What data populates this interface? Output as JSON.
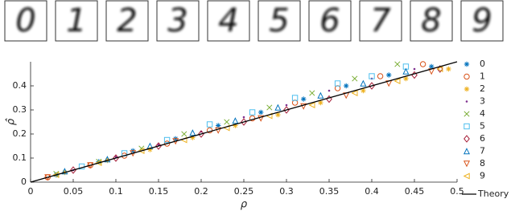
{
  "chart_data": {
    "type": "scatter",
    "xlabel": "ρ",
    "ylabel": "ρ̂",
    "xlim": [
      0,
      0.5
    ],
    "ylim": [
      0,
      0.5
    ],
    "xticks": [
      0,
      0.05,
      0.1,
      0.15,
      0.2,
      0.25,
      0.3,
      0.35,
      0.4,
      0.45,
      0.5
    ],
    "yticks": [
      0,
      0.1,
      0.2,
      0.3,
      0.4
    ],
    "legend": "right",
    "series": [
      {
        "name": "0",
        "color": "#0072BD",
        "marker": "star",
        "x": [
          0.03,
          0.08,
          0.12,
          0.17,
          0.22,
          0.27,
          0.32,
          0.37,
          0.42,
          0.47
        ],
        "values": [
          0.03,
          0.085,
          0.13,
          0.18,
          0.235,
          0.29,
          0.345,
          0.4,
          0.445,
          0.48
        ]
      },
      {
        "name": "1",
        "color": "#D95319",
        "marker": "circle",
        "x": [
          0.02,
          0.07,
          0.11,
          0.16,
          0.21,
          0.26,
          0.31,
          0.36,
          0.41,
          0.46
        ],
        "values": [
          0.02,
          0.07,
          0.11,
          0.16,
          0.215,
          0.265,
          0.33,
          0.39,
          0.44,
          0.49
        ]
      },
      {
        "name": "2",
        "color": "#EDB120",
        "marker": "star",
        "x": [
          0.04,
          0.09,
          0.14,
          0.19,
          0.24,
          0.29,
          0.34,
          0.39,
          0.44,
          0.49
        ],
        "values": [
          0.04,
          0.09,
          0.135,
          0.185,
          0.235,
          0.28,
          0.33,
          0.38,
          0.43,
          0.47
        ]
      },
      {
        "name": "3",
        "color": "#7E2F8E",
        "marker": "dot",
        "x": [
          0.05,
          0.1,
          0.15,
          0.2,
          0.25,
          0.3,
          0.35,
          0.4,
          0.45
        ],
        "values": [
          0.05,
          0.105,
          0.155,
          0.21,
          0.27,
          0.32,
          0.38,
          0.43,
          0.47
        ]
      },
      {
        "name": "4",
        "color": "#77AC30",
        "marker": "x",
        "x": [
          0.03,
          0.08,
          0.13,
          0.18,
          0.23,
          0.28,
          0.33,
          0.38,
          0.43
        ],
        "values": [
          0.035,
          0.085,
          0.14,
          0.2,
          0.25,
          0.31,
          0.37,
          0.43,
          0.49
        ]
      },
      {
        "name": "5",
        "color": "#4DBEEE",
        "marker": "square",
        "x": [
          0.06,
          0.11,
          0.16,
          0.21,
          0.26,
          0.31,
          0.36,
          0.4,
          0.44
        ],
        "values": [
          0.065,
          0.12,
          0.175,
          0.24,
          0.29,
          0.35,
          0.41,
          0.44,
          0.48
        ]
      },
      {
        "name": "6",
        "color": "#A2142F",
        "marker": "diamond",
        "x": [
          0.05,
          0.1,
          0.15,
          0.2,
          0.25,
          0.3,
          0.35,
          0.4,
          0.45,
          0.48
        ],
        "values": [
          0.05,
          0.1,
          0.15,
          0.2,
          0.25,
          0.3,
          0.345,
          0.4,
          0.445,
          0.47
        ]
      },
      {
        "name": "7",
        "color": "#0072BD",
        "marker": "triangle-up",
        "x": [
          0.04,
          0.09,
          0.14,
          0.19,
          0.24,
          0.29,
          0.34,
          0.39,
          0.44
        ],
        "values": [
          0.045,
          0.095,
          0.15,
          0.205,
          0.255,
          0.31,
          0.36,
          0.41,
          0.46
        ]
      },
      {
        "name": "8",
        "color": "#D95319",
        "marker": "triangle-down",
        "x": [
          0.02,
          0.07,
          0.12,
          0.17,
          0.22,
          0.27,
          0.32,
          0.37,
          0.42,
          0.47
        ],
        "values": [
          0.02,
          0.07,
          0.12,
          0.17,
          0.215,
          0.265,
          0.315,
          0.36,
          0.41,
          0.46
        ]
      },
      {
        "name": "9",
        "color": "#EDB120",
        "marker": "triangle-left",
        "x": [
          0.03,
          0.08,
          0.13,
          0.18,
          0.23,
          0.28,
          0.33,
          0.38,
          0.43,
          0.48
        ],
        "values": [
          0.03,
          0.08,
          0.13,
          0.175,
          0.225,
          0.275,
          0.32,
          0.37,
          0.42,
          0.47
        ]
      }
    ],
    "lines": [
      {
        "name": "Theory",
        "color": "#000000",
        "x": [
          0,
          0.5
        ],
        "values": [
          0,
          0.5
        ]
      }
    ]
  }
}
